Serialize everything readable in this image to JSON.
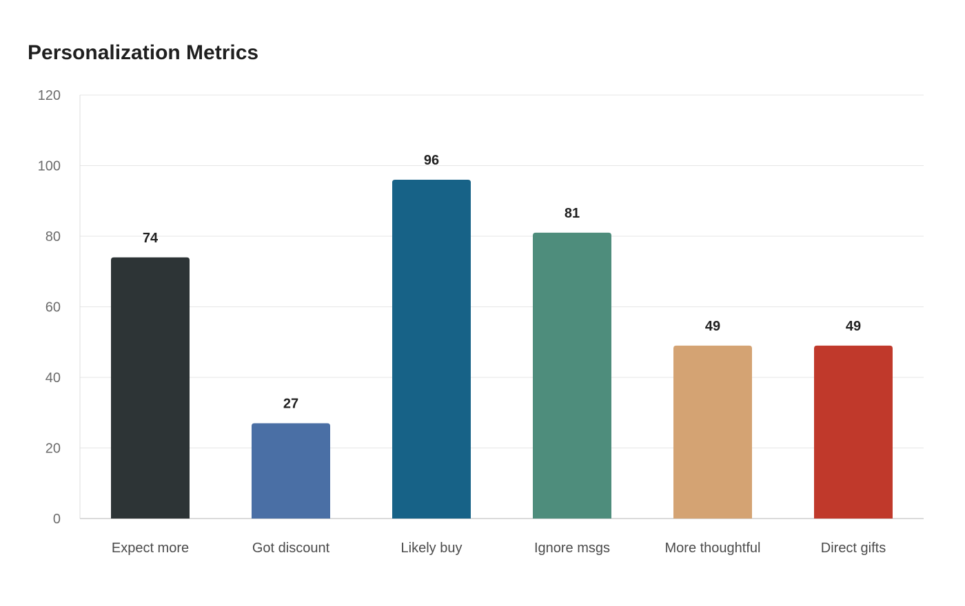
{
  "chart_data": {
    "type": "bar",
    "title": "Personalization Metrics",
    "categories": [
      "Expect more",
      "Got discount",
      "Likely buy",
      "Ignore msgs",
      "More thoughtful",
      "Direct gifts"
    ],
    "values": [
      74,
      27,
      96,
      81,
      49,
      49
    ],
    "colors": [
      "#2d3436",
      "#4a6fa5",
      "#176287",
      "#4e8d7c",
      "#d4a373",
      "#c0392b"
    ],
    "ylim": [
      0,
      120
    ],
    "yticks": [
      0,
      20,
      40,
      60,
      80,
      100,
      120
    ],
    "xlabel": "",
    "ylabel": "",
    "grid": true,
    "data_labels": true
  }
}
